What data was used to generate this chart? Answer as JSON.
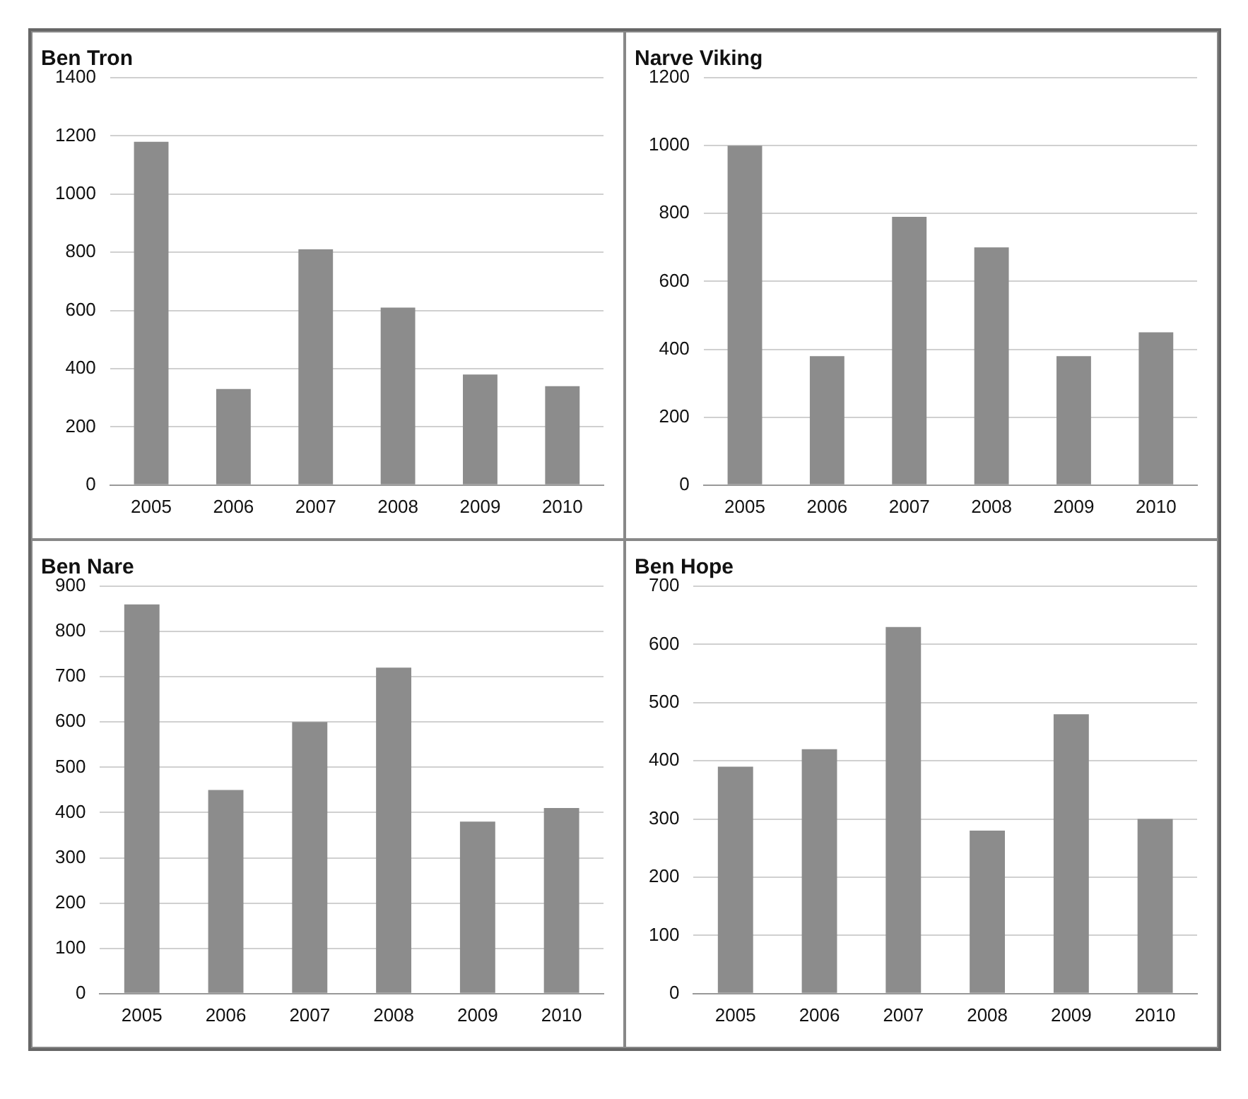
{
  "chart_data": [
    {
      "type": "bar",
      "title": "Ben Tron",
      "categories": [
        "2005",
        "2006",
        "2007",
        "2008",
        "2009",
        "2010"
      ],
      "values": [
        1180,
        330,
        810,
        610,
        380,
        340
      ],
      "color": "#8c8c8c",
      "ylim": [
        0,
        1400
      ],
      "yticks": [
        0,
        200,
        400,
        600,
        800,
        1000,
        1200,
        1400
      ],
      "grid": "y",
      "legend": false
    },
    {
      "type": "bar",
      "title": "Narve Viking",
      "categories": [
        "2005",
        "2006",
        "2007",
        "2008",
        "2009",
        "2010"
      ],
      "values": [
        1000,
        380,
        790,
        700,
        380,
        450
      ],
      "color": "#8c8c8c",
      "ylim": [
        0,
        1200
      ],
      "yticks": [
        0,
        200,
        400,
        600,
        800,
        1000,
        1200
      ],
      "grid": "y",
      "legend": false
    },
    {
      "type": "bar",
      "title": "Ben Nare",
      "categories": [
        "2005",
        "2006",
        "2007",
        "2008",
        "2009",
        "2010"
      ],
      "values": [
        860,
        450,
        600,
        720,
        380,
        410
      ],
      "color": "#8c8c8c",
      "ylim": [
        0,
        900
      ],
      "yticks": [
        0,
        100,
        200,
        300,
        400,
        500,
        600,
        700,
        800,
        900
      ],
      "grid": "y",
      "legend": false
    },
    {
      "type": "bar",
      "title": "Ben Hope",
      "categories": [
        "2005",
        "2006",
        "2007",
        "2008",
        "2009",
        "2010"
      ],
      "values": [
        390,
        420,
        630,
        280,
        480,
        300
      ],
      "color": "#8c8c8c",
      "ylim": [
        0,
        700
      ],
      "yticks": [
        0,
        100,
        200,
        300,
        400,
        500,
        600,
        700
      ],
      "grid": "y",
      "legend": false
    }
  ]
}
